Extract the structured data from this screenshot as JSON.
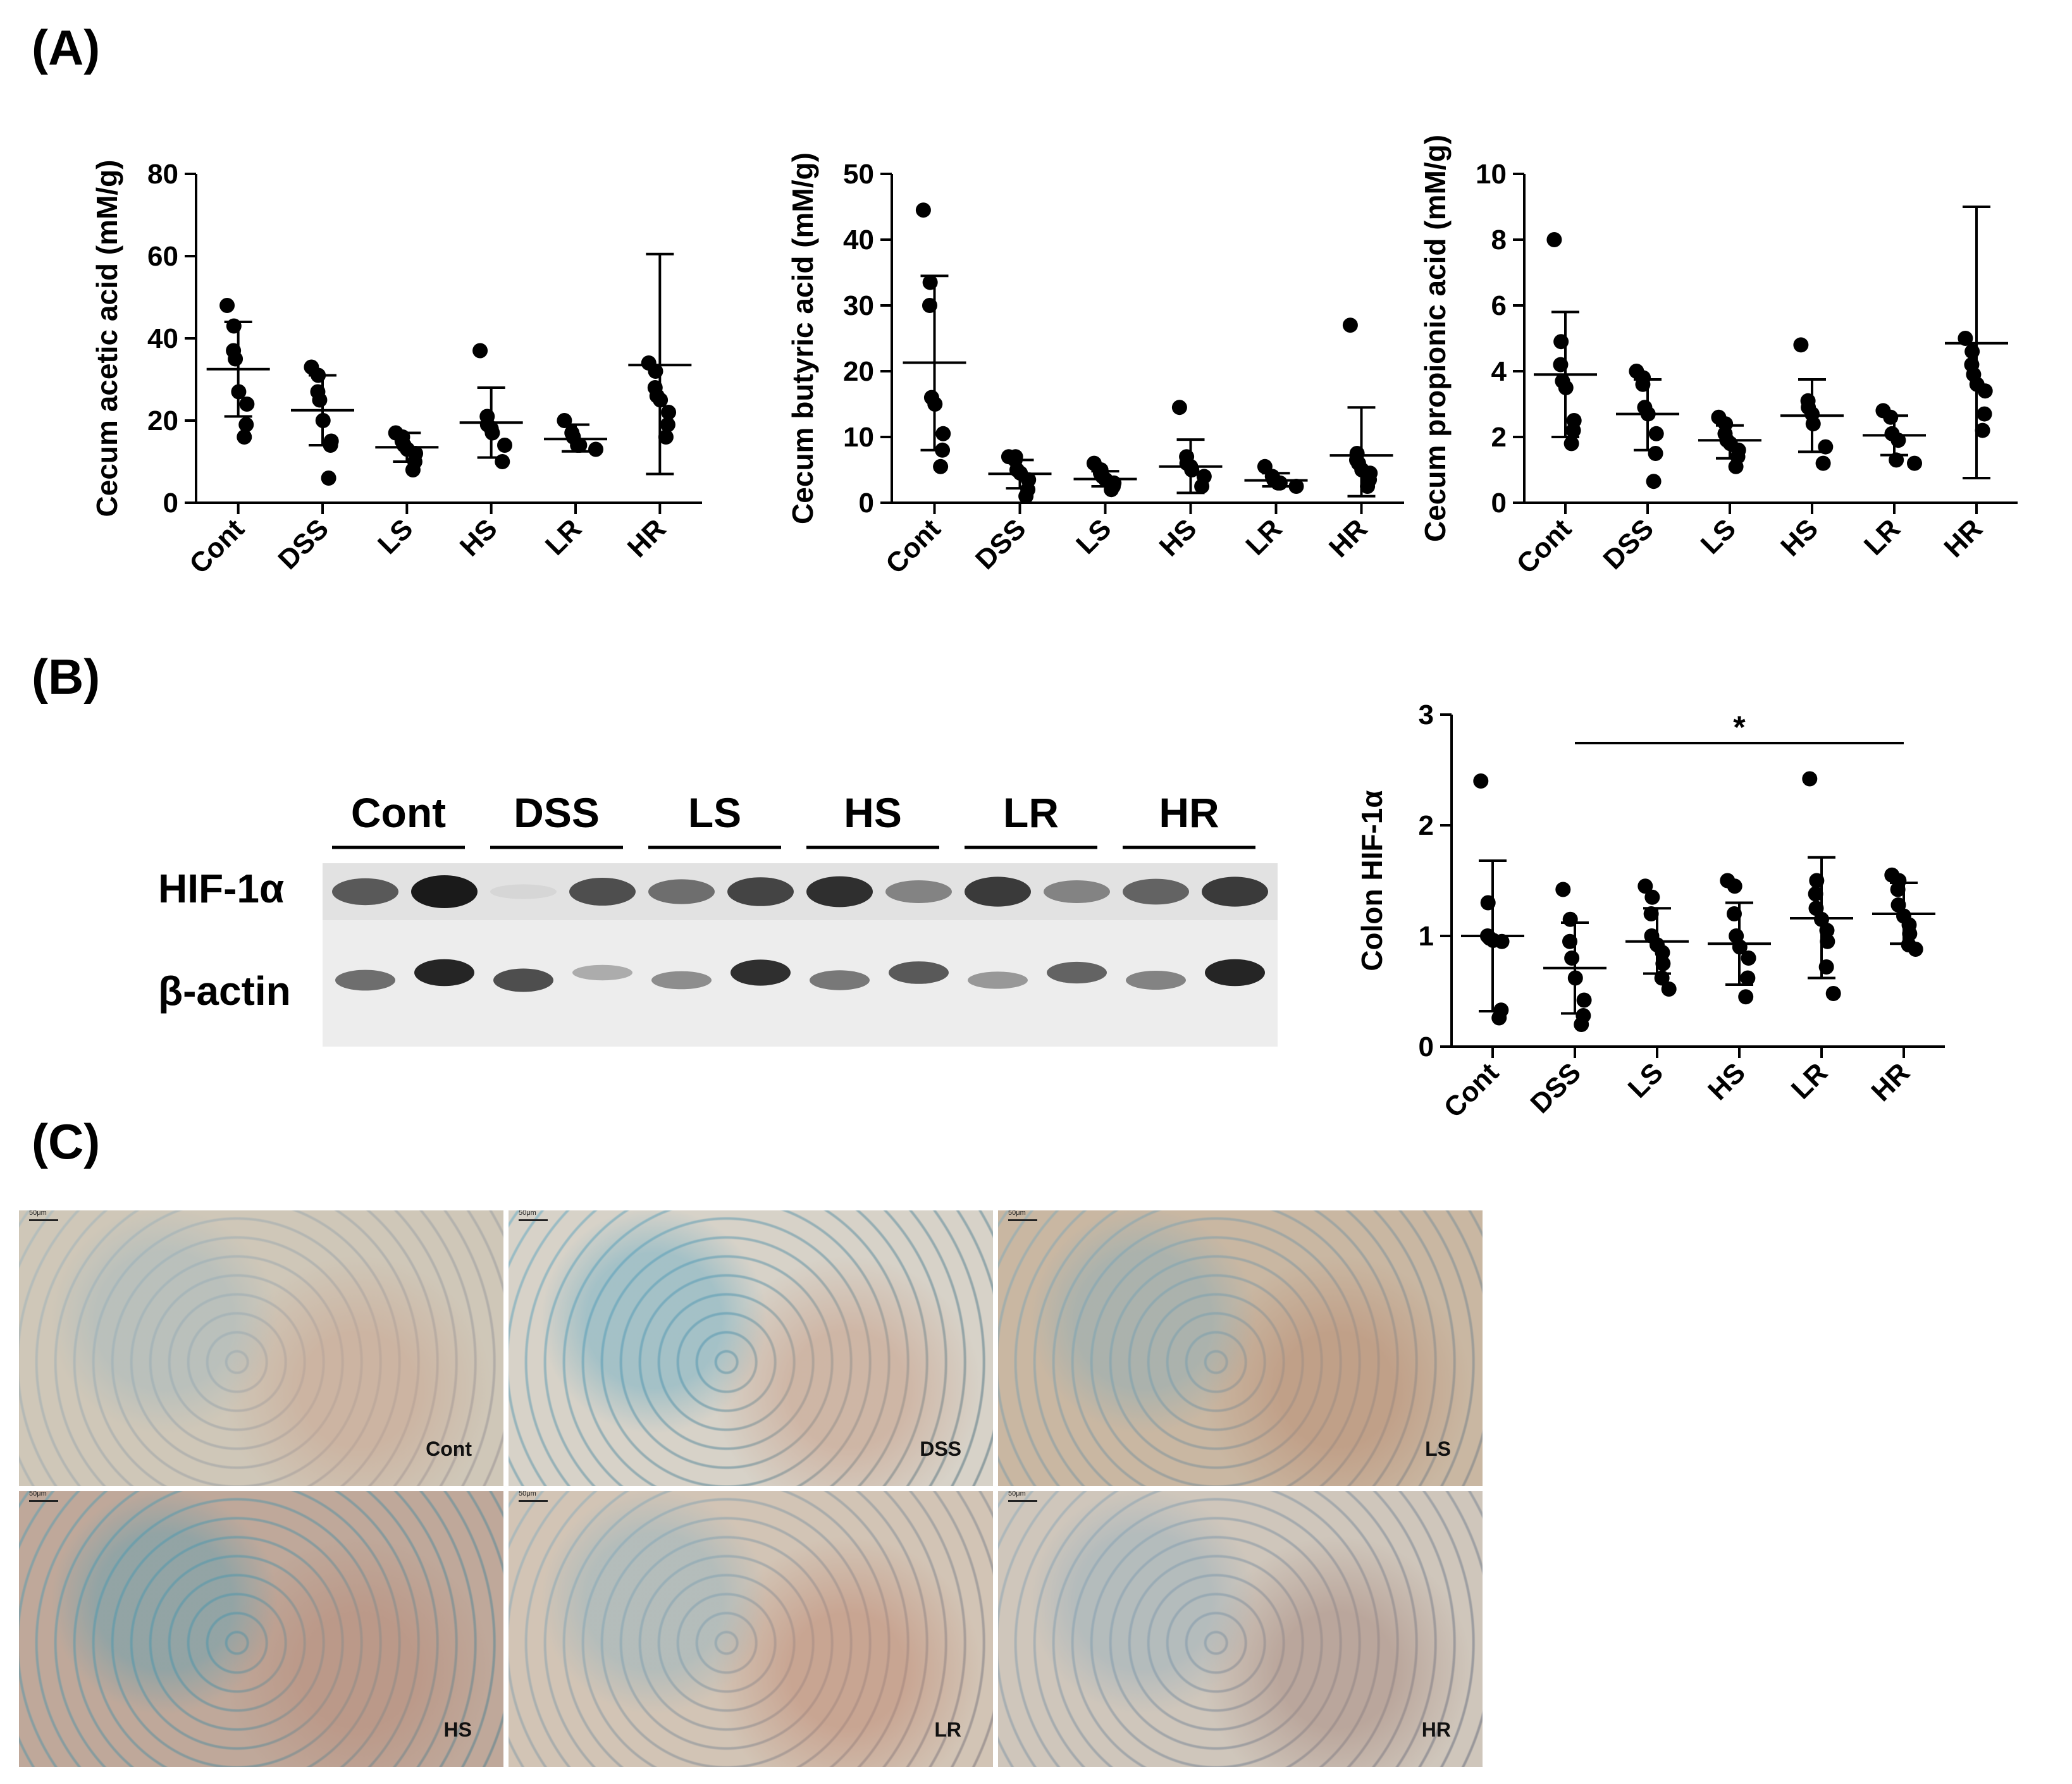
{
  "panels": {
    "A": "(A)",
    "B": "(B)",
    "C": "(C)"
  },
  "colors": {
    "points": "#000000",
    "axes": "#000000"
  },
  "chart_data": [
    {
      "id": "acetic",
      "type": "scatter",
      "ylabel": "Cecum acetic acid (mM/g)",
      "categories": [
        "Cont",
        "DSS",
        "LS",
        "HS",
        "LR",
        "HR"
      ],
      "ylim": [
        0,
        80
      ],
      "yticks": [
        0,
        20,
        40,
        60,
        80
      ],
      "ytick_labels": [
        "0",
        "20",
        "40",
        "60",
        "80"
      ],
      "points": [
        [
          48,
          43,
          37,
          35,
          27,
          24,
          19,
          16
        ],
        [
          33,
          31,
          27,
          25,
          20,
          15,
          14,
          6
        ],
        [
          17,
          16,
          15,
          14,
          13,
          12,
          10,
          8
        ],
        [
          37,
          21,
          19,
          18,
          17,
          14,
          10
        ],
        [
          20,
          17,
          16,
          14,
          14,
          13
        ],
        [
          34,
          32,
          28,
          26,
          25,
          22,
          19,
          16
        ]
      ],
      "means": [
        32.5,
        22.5,
        13.5,
        19.5,
        15.5,
        33.5
      ],
      "sd_low": [
        21,
        14,
        10,
        11,
        12.5,
        7
      ],
      "sd_high": [
        44,
        31,
        17,
        28,
        19,
        60.5
      ],
      "grid": false
    },
    {
      "id": "butyric",
      "type": "scatter",
      "ylabel": "Cecum butyric acid (mM/g)",
      "categories": [
        "Cont",
        "DSS",
        "LS",
        "HS",
        "LR",
        "HR"
      ],
      "ylim": [
        0,
        50
      ],
      "yticks": [
        0,
        10,
        20,
        30,
        40,
        50
      ],
      "ytick_labels": [
        "0",
        "10",
        "20",
        "30",
        "40",
        "50"
      ],
      "points": [
        [
          44.5,
          33.5,
          30,
          16,
          15,
          10.5,
          8,
          5.5
        ],
        [
          7,
          7,
          6.5,
          5,
          4.5,
          3.5,
          2,
          1
        ],
        [
          6,
          5,
          4.5,
          4,
          3.5,
          3,
          2.5,
          2
        ],
        [
          14.5,
          7,
          6,
          5.5,
          5,
          4,
          2.5
        ],
        [
          5.5,
          4,
          3.5,
          3,
          3,
          2.5
        ],
        [
          27,
          7.5,
          6.5,
          6,
          5,
          4.5,
          3.5,
          2.5
        ]
      ],
      "means": [
        21.3,
        4.4,
        3.6,
        5.5,
        3.4,
        7.2
      ],
      "sd_low": [
        8,
        2.2,
        2.5,
        1.5,
        2.5,
        1
      ],
      "sd_high": [
        34.5,
        6.5,
        4.8,
        9.6,
        4.5,
        14.5
      ],
      "grid": false
    },
    {
      "id": "propionic",
      "type": "scatter",
      "ylabel": "Cecum propionic acid (mM/g)",
      "categories": [
        "Cont",
        "DSS",
        "LS",
        "HS",
        "LR",
        "HR"
      ],
      "ylim": [
        0,
        10
      ],
      "yticks": [
        0,
        2,
        4,
        6,
        8,
        10
      ],
      "ytick_labels": [
        "0",
        "2",
        "4",
        "6",
        "8",
        "10"
      ],
      "points": [
        [
          8,
          4.9,
          4.2,
          3.7,
          3.5,
          2.5,
          2.2,
          1.8
        ],
        [
          4,
          3.8,
          3.6,
          2.9,
          2.7,
          2.1,
          1.5,
          0.65
        ],
        [
          2.6,
          2.4,
          2.1,
          1.9,
          1.8,
          1.6,
          1.4,
          1.1
        ],
        [
          4.8,
          3.1,
          2.9,
          2.7,
          2.4,
          1.7,
          1.2
        ],
        [
          2.8,
          2.6,
          2.1,
          1.9,
          1.3,
          1.2
        ],
        [
          5,
          4.6,
          4.2,
          3.9,
          3.6,
          3.4,
          2.7,
          2.2
        ]
      ],
      "means": [
        3.9,
        2.7,
        1.9,
        2.65,
        2.05,
        4.85
      ],
      "sd_low": [
        2,
        1.6,
        1.35,
        1.55,
        1.45,
        0.75
      ],
      "sd_high": [
        5.8,
        3.75,
        2.35,
        3.75,
        2.65,
        9
      ],
      "grid": false
    },
    {
      "id": "hif",
      "type": "scatter",
      "ylabel": "Colon HIF-1α",
      "categories": [
        "Cont",
        "DSS",
        "LS",
        "HS",
        "LR",
        "HR"
      ],
      "ylim": [
        0,
        3
      ],
      "yticks": [
        0,
        1,
        2,
        3
      ],
      "ytick_labels": [
        "0",
        "1",
        "2",
        "3"
      ],
      "points": [
        [
          2.4,
          1.3,
          1,
          0.98,
          0.96,
          0.95,
          0.33,
          0.26
        ],
        [
          1.42,
          1.15,
          0.95,
          0.8,
          0.62,
          0.42,
          0.28,
          0.2
        ],
        [
          1.45,
          1.35,
          1.2,
          1.0,
          0.92,
          0.85,
          0.75,
          0.62,
          0.52
        ],
        [
          1.5,
          1.45,
          1.2,
          1.0,
          0.9,
          0.8,
          0.62,
          0.45
        ],
        [
          2.42,
          1.5,
          1.38,
          1.25,
          1.15,
          1.05,
          0.95,
          0.72,
          0.48
        ],
        [
          1.55,
          1.5,
          1.42,
          1.28,
          1.18,
          1.1,
          1.02,
          0.92,
          0.88
        ]
      ],
      "means": [
        1.0,
        0.71,
        0.95,
        0.93,
        1.16,
        1.2
      ],
      "sd_low": [
        0.32,
        0.3,
        0.66,
        0.56,
        0.62,
        0.93
      ],
      "sd_high": [
        1.68,
        1.12,
        1.25,
        1.3,
        1.71,
        1.48
      ],
      "significance": {
        "from": "DSS",
        "to": "HR",
        "label": "*"
      },
      "grid": false
    }
  ],
  "western_blot": {
    "groups": [
      "Cont",
      "DSS",
      "LS",
      "HS",
      "LR",
      "HR"
    ],
    "rows": [
      "HIF-1α",
      "β-actin"
    ],
    "hif_intensity": [
      0.7,
      1.0,
      0.1,
      0.75,
      0.6,
      0.8,
      0.9,
      0.5,
      0.85,
      0.5,
      0.65,
      0.85
    ],
    "actin_intensity": [
      0.6,
      0.95,
      0.75,
      0.3,
      0.45,
      0.9,
      0.55,
      0.7,
      0.4,
      0.65,
      0.5,
      0.95
    ]
  },
  "micrographs": {
    "scale_label": "50μm",
    "tiles": [
      {
        "label": "Cont"
      },
      {
        "label": "DSS"
      },
      {
        "label": "LS"
      },
      {
        "label": "HS"
      },
      {
        "label": "LR"
      },
      {
        "label": "HR"
      }
    ]
  }
}
